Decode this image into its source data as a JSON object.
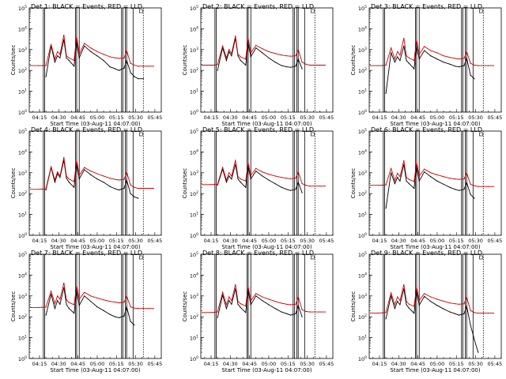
{
  "chart_data": [
    {
      "type": "line",
      "title": "Det 1: BLACK = Events, RED = LLD",
      "xlabel": "Start Time (03-Aug-11 04:07:00)",
      "ylabel": "Counts/sec",
      "xticks": [
        "04:15",
        "04:30",
        "04:45",
        "05:00",
        "05:15",
        "05:30",
        "05:45"
      ],
      "yticks": [
        "10^0",
        "10^1",
        "10^2",
        "10^3",
        "10^4",
        "10^5"
      ],
      "x": [
        "04:08",
        "04:14",
        "04:17",
        "04:20",
        "04:24",
        "04:27",
        "04:29",
        "04:31",
        "04:34",
        "04:36",
        "04:38",
        "04:42",
        "04:44",
        "04:46",
        "04:50",
        "04:55",
        "05:00",
        "05:05",
        "05:10",
        "05:14",
        "05:17",
        "05:21",
        "05:23",
        "05:26",
        "05:29",
        "05:32",
        "05:36",
        "05:40",
        "05:44"
      ],
      "series": [
        {
          "name": "BLACK",
          "color": "#000000",
          "values": [
            null,
            null,
            null,
            50,
            1500,
            250,
            500,
            400,
            3000,
            400,
            300,
            160,
            2500,
            400,
            1500,
            800,
            500,
            300,
            150,
            120,
            100,
            130,
            300,
            80,
            50,
            40,
            40,
            null,
            null
          ]
        },
        {
          "name": "RED",
          "color": "#cc0000",
          "values": [
            170,
            170,
            170,
            170,
            1800,
            350,
            800,
            600,
            5000,
            500,
            400,
            300,
            4500,
            600,
            2000,
            1200,
            800,
            600,
            450,
            400,
            380,
            400,
            900,
            220,
            180,
            160,
            160,
            160,
            160
          ]
        }
      ]
    },
    {
      "type": "line",
      "title": "Det 2: BLACK = Events, RED = LLD",
      "xlabel": "Start Time (03-Aug-11 04:07:00)",
      "ylabel": "Counts/sec",
      "xticks": [
        "04:15",
        "04:30",
        "04:45",
        "05:00",
        "05:15",
        "05:30",
        "05:45"
      ],
      "yticks": [
        "10^0",
        "10^1",
        "10^2",
        "10^3",
        "10^4",
        "10^5"
      ],
      "x": [
        "04:08",
        "04:14",
        "04:17",
        "04:20",
        "04:24",
        "04:27",
        "04:29",
        "04:31",
        "04:34",
        "04:36",
        "04:38",
        "04:42",
        "04:44",
        "04:46",
        "04:50",
        "04:55",
        "05:00",
        "05:05",
        "05:10",
        "05:14",
        "05:17",
        "05:21",
        "05:23",
        "05:26",
        "05:29",
        "05:32",
        "05:36",
        "05:40",
        "05:44"
      ],
      "series": [
        {
          "name": "BLACK",
          "color": "#000000",
          "values": [
            null,
            null,
            null,
            100,
            1200,
            300,
            800,
            500,
            3500,
            500,
            300,
            180,
            2000,
            450,
            1200,
            700,
            400,
            250,
            170,
            150,
            140,
            160,
            350,
            120,
            null,
            null,
            null,
            null,
            null
          ]
        },
        {
          "name": "RED",
          "color": "#cc0000",
          "values": [
            180,
            180,
            180,
            190,
            1500,
            400,
            1000,
            650,
            4500,
            600,
            450,
            350,
            3500,
            700,
            1600,
            1100,
            800,
            650,
            550,
            500,
            480,
            500,
            1000,
            250,
            200,
            180,
            180,
            180,
            180
          ]
        }
      ]
    },
    {
      "type": "line",
      "title": "Det 3: BLACK = Events, RED = LLD",
      "xlabel": "Start Time (03-Aug-11 04:07:00)",
      "ylabel": "Counts/sec",
      "xticks": [
        "04:15",
        "04:30",
        "04:45",
        "05:00",
        "05:15",
        "05:30",
        "05:45"
      ],
      "yticks": [
        "10^0",
        "10^1",
        "10^2",
        "10^3",
        "10^4",
        "10^5"
      ],
      "x": [
        "04:08",
        "04:14",
        "04:17",
        "04:20",
        "04:24",
        "04:27",
        "04:29",
        "04:31",
        "04:34",
        "04:36",
        "04:38",
        "04:42",
        "04:44",
        "04:46",
        "04:50",
        "04:55",
        "05:00",
        "05:05",
        "05:10",
        "05:14",
        "05:17",
        "05:21",
        "05:23",
        "05:26",
        "05:29",
        "05:32",
        "05:36",
        "05:40",
        "05:44"
      ],
      "series": [
        {
          "name": "BLACK",
          "color": "#000000",
          "values": [
            null,
            null,
            null,
            8,
            700,
            250,
            450,
            300,
            1500,
            300,
            220,
            120,
            1500,
            350,
            900,
            500,
            350,
            250,
            200,
            160,
            150,
            170,
            400,
            60,
            40,
            null,
            null,
            null,
            null
          ]
        },
        {
          "name": "RED",
          "color": "#cc0000",
          "values": [
            170,
            170,
            170,
            180,
            1200,
            350,
            800,
            550,
            3500,
            500,
            400,
            300,
            3000,
            600,
            1400,
            900,
            700,
            500,
            420,
            380,
            350,
            380,
            800,
            220,
            180,
            170,
            170,
            170,
            170
          ]
        }
      ]
    },
    {
      "type": "line",
      "title": "Det 4: BLACK = Events, RED = LLD",
      "xlabel": "Start Time (03-Aug-11 04:07:00)",
      "ylabel": "Counts/sec",
      "xticks": [
        "04:15",
        "04:30",
        "04:45",
        "05:00",
        "05:15",
        "05:30",
        "05:45"
      ],
      "yticks": [
        "10^0",
        "10^1",
        "10^2",
        "10^3",
        "10^4",
        "10^5"
      ],
      "x": [
        "04:08",
        "04:14",
        "04:17",
        "04:20",
        "04:24",
        "04:27",
        "04:29",
        "04:31",
        "04:34",
        "04:36",
        "04:38",
        "04:42",
        "04:44",
        "04:46",
        "04:50",
        "04:55",
        "05:00",
        "05:05",
        "05:10",
        "05:14",
        "05:17",
        "05:21",
        "05:23",
        "05:26",
        "05:29",
        "05:32",
        "05:36",
        "05:40",
        "05:44"
      ],
      "series": [
        {
          "name": "BLACK",
          "color": "#000000",
          "values": [
            null,
            null,
            null,
            150,
            1800,
            350,
            900,
            600,
            4000,
            550,
            350,
            200,
            2800,
            500,
            1400,
            800,
            500,
            350,
            220,
            170,
            150,
            180,
            450,
            100,
            70,
            60,
            null,
            null,
            null
          ]
        },
        {
          "name": "RED",
          "color": "#cc0000",
          "values": [
            160,
            160,
            165,
            170,
            2000,
            450,
            1100,
            700,
            5500,
            700,
            500,
            380,
            4000,
            750,
            1800,
            1200,
            900,
            700,
            550,
            480,
            450,
            480,
            1100,
            260,
            200,
            180,
            180,
            180,
            180
          ]
        }
      ]
    },
    {
      "type": "line",
      "title": "Det 5: BLACK = Events, RED = LLD",
      "xlabel": "Start Time (03-Aug-11 04:07:00)",
      "ylabel": "Counts/sec",
      "xticks": [
        "04:15",
        "04:30",
        "04:45",
        "05:00",
        "05:15",
        "05:30",
        "05:45"
      ],
      "yticks": [
        "10^0",
        "10^1",
        "10^2",
        "10^3",
        "10^4",
        "10^5"
      ],
      "x": [
        "04:08",
        "04:14",
        "04:17",
        "04:20",
        "04:24",
        "04:27",
        "04:29",
        "04:31",
        "04:34",
        "04:36",
        "04:38",
        "04:42",
        "04:44",
        "04:46",
        "04:50",
        "04:55",
        "05:00",
        "05:05",
        "05:10",
        "05:14",
        "05:17",
        "05:21",
        "05:23",
        "05:26",
        "05:29",
        "05:32",
        "05:36",
        "05:40",
        "05:44"
      ],
      "series": [
        {
          "name": "BLACK",
          "color": "#000000",
          "values": [
            null,
            null,
            null,
            250,
            1500,
            350,
            700,
            500,
            2500,
            500,
            350,
            200,
            2000,
            500,
            1200,
            700,
            450,
            300,
            200,
            160,
            140,
            160,
            350,
            110,
            null,
            null,
            null,
            null,
            null
          ]
        },
        {
          "name": "RED",
          "color": "#cc0000",
          "values": [
            270,
            270,
            275,
            280,
            1800,
            450,
            1000,
            700,
            4000,
            650,
            500,
            400,
            3000,
            750,
            1600,
            1100,
            850,
            700,
            600,
            550,
            520,
            550,
            1100,
            300,
            250,
            230,
            230,
            230,
            230
          ]
        }
      ]
    },
    {
      "type": "line",
      "title": "Det 6: BLACK = Events, RED = LLD",
      "xlabel": "Start Time (03-Aug-11 04:07:00)",
      "ylabel": "Counts/sec",
      "xticks": [
        "04:15",
        "04:30",
        "04:45",
        "05:00",
        "05:15",
        "05:30",
        "05:45"
      ],
      "yticks": [
        "10^0",
        "10^1",
        "10^2",
        "10^3",
        "10^4",
        "10^5"
      ],
      "x": [
        "04:08",
        "04:14",
        "04:17",
        "04:20",
        "04:24",
        "04:27",
        "04:29",
        "04:31",
        "04:34",
        "04:36",
        "04:38",
        "04:42",
        "04:44",
        "04:46",
        "04:50",
        "04:55",
        "05:00",
        "05:05",
        "05:10",
        "05:14",
        "05:17",
        "05:21",
        "05:23",
        "05:26",
        "05:29",
        "05:32",
        "05:36",
        "05:40",
        "05:44"
      ],
      "series": [
        {
          "name": "BLACK",
          "color": "#000000",
          "values": [
            null,
            null,
            null,
            20,
            1000,
            300,
            600,
            400,
            2500,
            400,
            300,
            180,
            2000,
            400,
            1100,
            650,
            400,
            280,
            200,
            160,
            140,
            160,
            350,
            90,
            60,
            null,
            null,
            null,
            null
          ]
        },
        {
          "name": "RED",
          "color": "#cc0000",
          "values": [
            250,
            250,
            255,
            260,
            1600,
            420,
            950,
            650,
            3800,
            600,
            480,
            380,
            3200,
            700,
            1500,
            1000,
            800,
            650,
            550,
            500,
            480,
            500,
            1000,
            280,
            240,
            220,
            220,
            220,
            220
          ]
        }
      ]
    },
    {
      "type": "line",
      "title": "Det 7: BLACK = Events, RED = LLD",
      "xlabel": "Start Time (03-Aug-11 04:07:00)",
      "ylabel": "Counts/sec",
      "xticks": [
        "04:15",
        "04:30",
        "04:45",
        "05:00",
        "05:15",
        "05:30",
        "05:45"
      ],
      "yticks": [
        "10^0",
        "10^1",
        "10^2",
        "10^3",
        "10^4",
        "10^5"
      ],
      "x": [
        "04:08",
        "04:14",
        "04:17",
        "04:20",
        "04:24",
        "04:27",
        "04:29",
        "04:31",
        "04:34",
        "04:36",
        "04:38",
        "04:42",
        "04:44",
        "04:46",
        "04:50",
        "04:55",
        "05:00",
        "05:05",
        "05:10",
        "05:14",
        "05:17",
        "05:21",
        "05:23",
        "05:26",
        "05:29",
        "05:32",
        "05:36",
        "05:40",
        "05:44"
      ],
      "series": [
        {
          "name": "BLACK",
          "color": "#000000",
          "values": [
            null,
            null,
            null,
            120,
            1200,
            250,
            600,
            400,
            2500,
            400,
            250,
            150,
            1800,
            350,
            1000,
            550,
            300,
            200,
            130,
            100,
            90,
            110,
            300,
            60,
            40,
            null,
            null,
            null,
            null
          ]
        },
        {
          "name": "RED",
          "color": "#cc0000",
          "values": [
            280,
            280,
            285,
            290,
            1700,
            420,
            1000,
            700,
            4200,
            650,
            480,
            380,
            3200,
            700,
            1500,
            1000,
            800,
            650,
            550,
            500,
            470,
            500,
            1000,
            300,
            260,
            250,
            250,
            250,
            250
          ]
        }
      ]
    },
    {
      "type": "line",
      "title": "Det 8: BLACK = Events, RED = LLD",
      "xlabel": "Start Time (03-Aug-11 04:07:00)",
      "ylabel": "Counts/sec",
      "xticks": [
        "04:15",
        "04:30",
        "04:45",
        "05:00",
        "05:15",
        "05:30",
        "05:45"
      ],
      "yticks": [
        "10^0",
        "10^1",
        "10^2",
        "10^3",
        "10^4",
        "10^5"
      ],
      "x": [
        "04:08",
        "04:14",
        "04:17",
        "04:20",
        "04:24",
        "04:27",
        "04:29",
        "04:31",
        "04:34",
        "04:36",
        "04:38",
        "04:42",
        "04:44",
        "04:46",
        "04:50",
        "04:55",
        "05:00",
        "05:05",
        "05:10",
        "05:14",
        "05:17",
        "05:21",
        "05:23",
        "05:26",
        "05:29",
        "05:32",
        "05:36",
        "05:40",
        "05:44"
      ],
      "series": [
        {
          "name": "BLACK",
          "color": "#000000",
          "values": [
            null,
            null,
            null,
            90,
            1100,
            250,
            600,
            400,
            2200,
            400,
            280,
            160,
            1800,
            380,
            1000,
            600,
            380,
            250,
            170,
            140,
            120,
            140,
            350,
            100,
            null,
            null,
            null,
            null,
            null
          ]
        },
        {
          "name": "RED",
          "color": "#cc0000",
          "values": [
            160,
            160,
            165,
            170,
            1500,
            380,
            900,
            600,
            3500,
            550,
            420,
            330,
            2800,
            600,
            1300,
            900,
            700,
            550,
            450,
            400,
            380,
            400,
            900,
            220,
            180,
            170,
            170,
            170,
            170
          ]
        }
      ]
    },
    {
      "type": "line",
      "title": "Det 9: BLACK = Events, RED = LLD",
      "xlabel": "Start Time (03-Aug-11 04:07:00)",
      "ylabel": "Counts/sec",
      "xticks": [
        "04:15",
        "04:30",
        "04:45",
        "05:00",
        "05:15",
        "05:30",
        "05:45"
      ],
      "yticks": [
        "10^0",
        "10^1",
        "10^2",
        "10^3",
        "10^4",
        "10^5"
      ],
      "x": [
        "04:08",
        "04:14",
        "04:17",
        "04:20",
        "04:24",
        "04:27",
        "04:29",
        "04:31",
        "04:34",
        "04:36",
        "04:38",
        "04:42",
        "04:44",
        "04:46",
        "04:50",
        "04:55",
        "05:00",
        "05:05",
        "05:10",
        "05:14",
        "05:17",
        "05:21",
        "05:23",
        "05:26",
        "05:29",
        "05:32",
        "05:36",
        "05:40",
        "05:44"
      ],
      "series": [
        {
          "name": "BLACK",
          "color": "#000000",
          "values": [
            null,
            null,
            null,
            80,
            1000,
            250,
            550,
            380,
            2200,
            380,
            260,
            150,
            1700,
            360,
            950,
            550,
            350,
            240,
            170,
            140,
            120,
            140,
            330,
            40,
            8,
            2,
            null,
            null,
            null
          ]
        },
        {
          "name": "RED",
          "color": "#cc0000",
          "values": [
            150,
            150,
            155,
            160,
            1400,
            380,
            900,
            600,
            3500,
            550,
            400,
            320,
            2700,
            600,
            1300,
            900,
            700,
            560,
            460,
            420,
            400,
            420,
            900,
            200,
            160,
            150,
            150,
            150,
            150
          ]
        }
      ]
    }
  ]
}
